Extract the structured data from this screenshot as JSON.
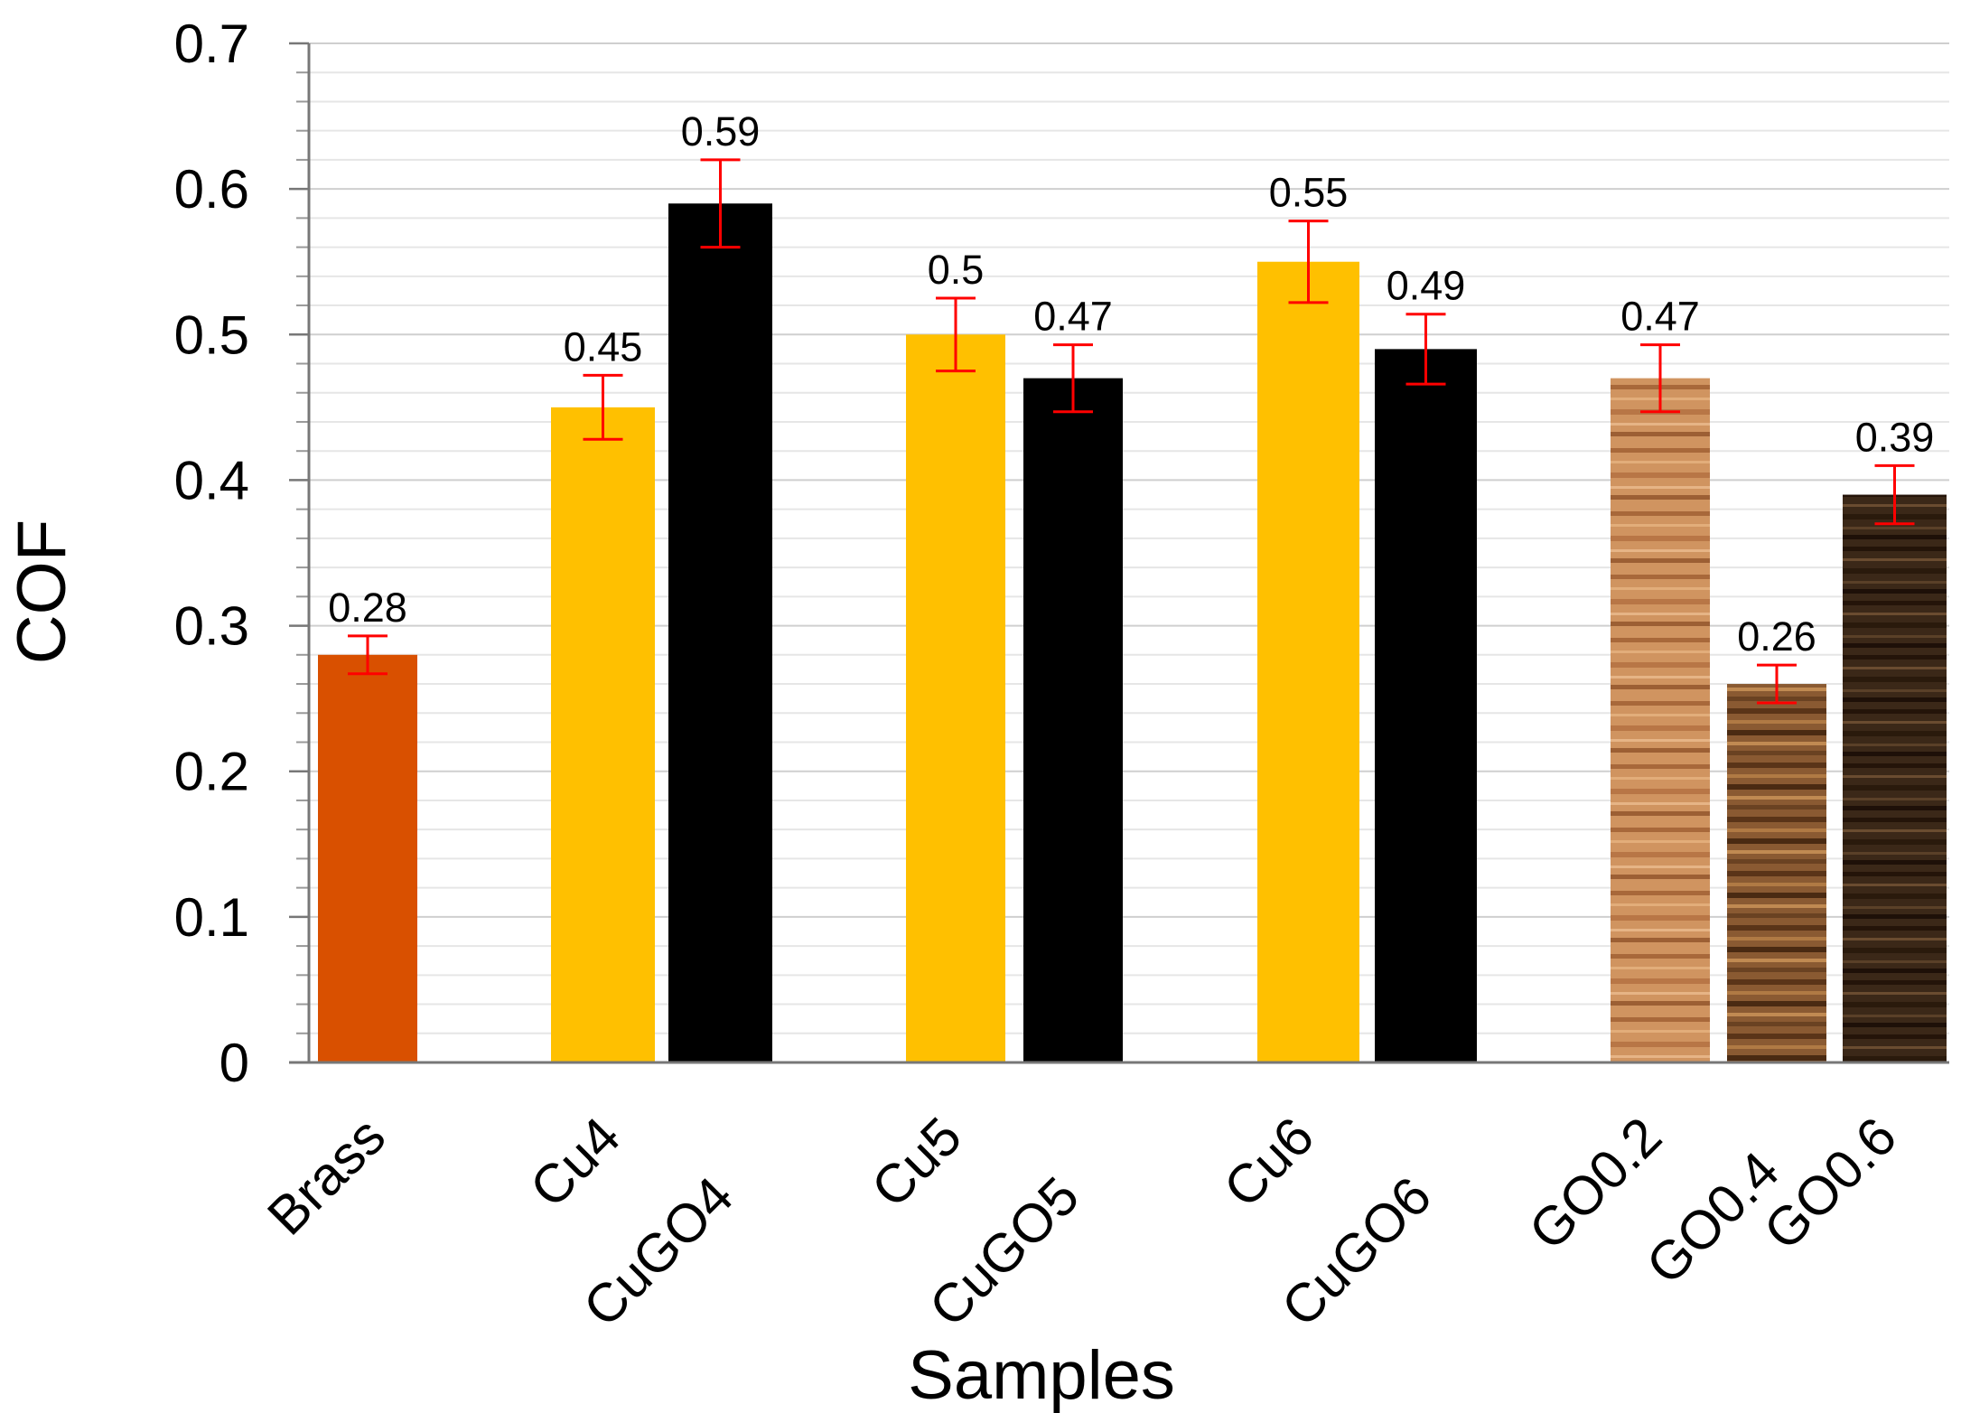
{
  "chart_data": {
    "type": "bar",
    "title": "",
    "xlabel": "Samples",
    "ylabel": "COF",
    "ylim": [
      0,
      0.7
    ],
    "y_ticks": [
      "0",
      "0.1",
      "0.2",
      "0.3",
      "0.4",
      "0.5",
      "0.6",
      "0.7"
    ],
    "grid": "horizontal",
    "error_bar_color": "#ff0000",
    "categories": [
      "Brass",
      "Cu4",
      "CuGO4",
      "Cu5",
      "CuGO5",
      "Cu6",
      "CuGO6",
      "GO0.2",
      "GO0.4",
      "GO0.6"
    ],
    "values": [
      0.28,
      0.45,
      0.59,
      0.5,
      0.47,
      0.55,
      0.49,
      0.47,
      0.26,
      0.39
    ],
    "value_labels": [
      "0.28",
      "0.45",
      "0.59",
      "0.5",
      "0.47",
      "0.55",
      "0.49",
      "0.47",
      "0.26",
      "0.39"
    ],
    "errors": [
      0.013,
      0.022,
      0.03,
      0.025,
      0.023,
      0.028,
      0.024,
      0.023,
      0.013,
      0.02
    ],
    "colors": [
      "#d95000",
      "#ffc000",
      "#000000",
      "#ffc000",
      "#000000",
      "#ffc000",
      "#000000",
      "#c98a55",
      "#7a5230",
      "#3e2b1c"
    ],
    "texture": [
      "none",
      "none",
      "none",
      "none",
      "none",
      "none",
      "none",
      "wood-light",
      "wood-medium",
      "wood-dark"
    ]
  }
}
